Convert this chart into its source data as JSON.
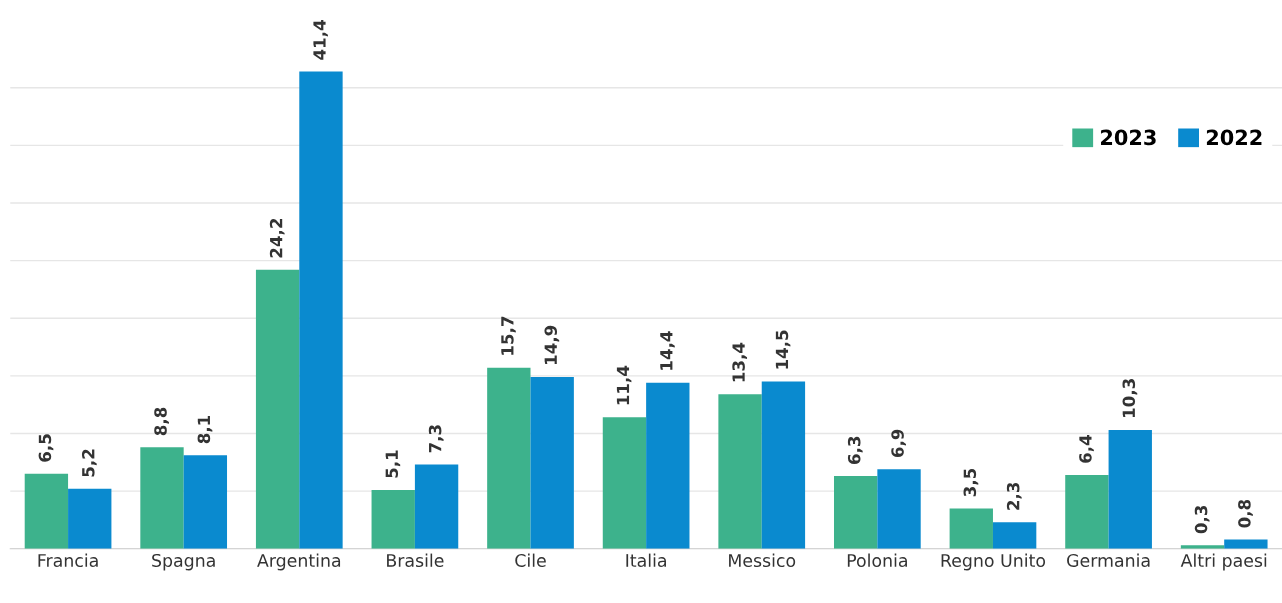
{
  "chart_data": {
    "type": "bar",
    "categories": [
      "Francia",
      "Spagna",
      "Argentina",
      "Brasile",
      "Cile",
      "Italia",
      "Messico",
      "Polonia",
      "Regno Unito",
      "Germania",
      "Altri paesi"
    ],
    "series": [
      {
        "name": "2023",
        "color": "#3db28c",
        "values": [
          6.5,
          8.8,
          24.2,
          5.1,
          15.7,
          11.4,
          13.4,
          6.3,
          3.5,
          6.4,
          0.3
        ],
        "value_labels": [
          "6,5",
          "8,8",
          "24,2",
          "5,1",
          "15,7",
          "11,4",
          "13,4",
          "6,3",
          "3,5",
          "6,4",
          "0,3"
        ]
      },
      {
        "name": "2022",
        "color": "#0a8acf",
        "values": [
          5.2,
          8.1,
          41.4,
          7.3,
          14.9,
          14.4,
          14.5,
          6.9,
          2.3,
          10.3,
          0.8
        ],
        "value_labels": [
          "5,2",
          "8,1",
          "41,4",
          "7,3",
          "14,9",
          "14,4",
          "14,5",
          "6,9",
          "2,3",
          "10,3",
          "0,8"
        ]
      }
    ],
    "yticks": [
      {
        "value": 0,
        "label": null
      },
      {
        "value": 5,
        "label": null
      },
      {
        "value": 10,
        "label": null
      },
      {
        "value": 15,
        "label": null
      },
      {
        "value": 20,
        "label": null
      },
      {
        "value": 25,
        "label": null
      },
      {
        "value": 30,
        "label": null
      },
      {
        "value": 35,
        "label": null
      },
      {
        "value": 40,
        "label": null
      }
    ],
    "tick_labels": "x",
    "grid": "y",
    "legend": "top right"
  }
}
